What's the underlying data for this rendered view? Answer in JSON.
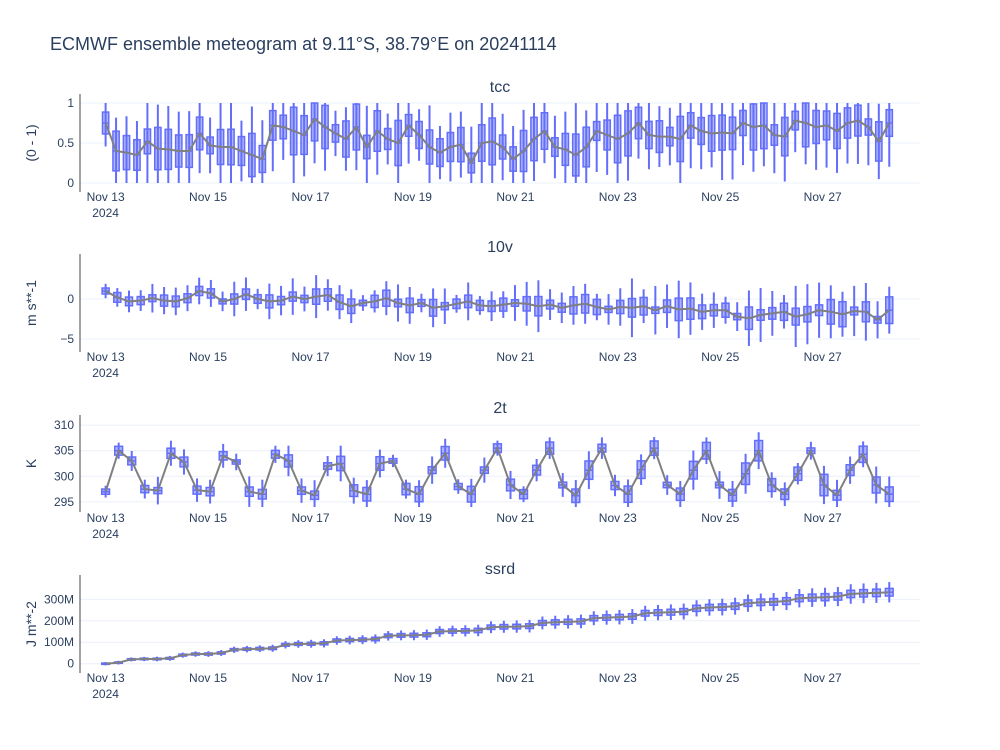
{
  "title": "ECMWF ensemble meteogram at 9.11°S, 38.79°E on 20241114",
  "colors": {
    "box_fill": "rgba(99,110,250,0.5)",
    "box_line": "#636efa",
    "whisker": "#636efa",
    "mean_line": "#808080",
    "grid": "#ebf0f8",
    "text": "#2a3f5f"
  },
  "x_axis": {
    "ticks": [
      {
        "t": 0,
        "label": "Nov 13",
        "sub": "2024"
      },
      {
        "t": 2,
        "label": "Nov 15",
        "sub": ""
      },
      {
        "t": 4,
        "label": "Nov 17",
        "sub": ""
      },
      {
        "t": 6,
        "label": "Nov 19",
        "sub": ""
      },
      {
        "t": 8,
        "label": "Nov 21",
        "sub": ""
      },
      {
        "t": 10,
        "label": "Nov 23",
        "sub": ""
      },
      {
        "t": 12,
        "label": "Nov 25",
        "sub": ""
      },
      {
        "t": 14,
        "label": "Nov 27",
        "sub": ""
      }
    ],
    "range_days": [
      -0.5,
      15.9
    ]
  },
  "chart_data": [
    {
      "type": "box",
      "title": "tcc",
      "ylabel": "(0 - 1)",
      "ylim": [
        -0.05,
        1.05
      ],
      "yticks": [
        {
          "v": 0,
          "label": "0"
        },
        {
          "v": 0.5,
          "label": "0.5"
        },
        {
          "v": 1,
          "label": "1"
        }
      ],
      "mean": [
        0.75,
        0.4,
        0.38,
        0.35,
        0.52,
        0.43,
        0.42,
        0.4,
        0.4,
        0.62,
        0.47,
        0.45,
        0.45,
        0.4,
        0.35,
        0.3,
        0.72,
        0.7,
        0.65,
        0.6,
        0.8,
        0.7,
        0.62,
        0.55,
        0.7,
        0.45,
        0.65,
        0.55,
        0.5,
        0.72,
        0.6,
        0.45,
        0.38,
        0.45,
        0.48,
        0.25,
        0.5,
        0.52,
        0.45,
        0.3,
        0.4,
        0.55,
        0.65,
        0.45,
        0.42,
        0.35,
        0.45,
        0.65,
        0.6,
        0.55,
        0.62,
        0.75,
        0.6,
        0.58,
        0.58,
        0.55,
        0.72,
        0.65,
        0.62,
        0.63,
        0.62,
        0.75,
        0.7,
        0.72,
        0.6,
        0.58,
        0.78,
        0.75,
        0.7,
        0.72,
        0.65,
        0.75,
        0.78,
        0.7,
        0.52,
        0.75
      ]
    },
    {
      "type": "box",
      "title": "10v",
      "ylabel": "m s**-1",
      "ylim": [
        -6,
        5
      ],
      "yticks": [
        {
          "v": -5,
          "label": "−5"
        },
        {
          "v": 0,
          "label": "0"
        }
      ],
      "mean": [
        1.0,
        0.2,
        -0.3,
        -0.2,
        0.1,
        -0.2,
        -0.3,
        0.1,
        1.0,
        0.7,
        -0.3,
        0.0,
        0.6,
        0.0,
        -0.3,
        -0.2,
        0.3,
        0.0,
        0.3,
        0.5,
        -0.4,
        -0.9,
        -0.5,
        -0.3,
        0.1,
        -0.5,
        -0.8,
        -0.5,
        -1.1,
        -0.9,
        -0.6,
        -0.3,
        -0.8,
        -0.9,
        -0.7,
        -0.5,
        -0.6,
        -0.9,
        -0.7,
        -1.1,
        -0.8,
        -0.6,
        -1.0,
        -1.3,
        -1.0,
        -1.1,
        -0.9,
        -1.4,
        -0.9,
        -1.3,
        -1.2,
        -1.6,
        -1.4,
        -1.4,
        -2.2,
        -2.4,
        -2.0,
        -1.8,
        -1.6,
        -2.2,
        -1.9,
        -1.4,
        -1.6,
        -1.9,
        -1.5,
        -1.6,
        -2.6,
        -1.4
      ]
    },
    {
      "type": "box",
      "title": "2t",
      "ylabel": "K",
      "ylim": [
        294,
        311
      ],
      "yticks": [
        {
          "v": 295,
          "label": "295"
        },
        {
          "v": 300,
          "label": "300"
        },
        {
          "v": 305,
          "label": "305"
        },
        {
          "v": 310,
          "label": "310"
        }
      ],
      "mean": [
        297.0,
        305.0,
        303.0,
        297.5,
        297.2,
        304.5,
        302.8,
        297.3,
        297.0,
        304.0,
        302.8,
        297.0,
        296.5,
        304.3,
        303.0,
        297.2,
        296.3,
        302.0,
        302.5,
        297.2,
        296.5,
        302.5,
        303.0,
        297.5,
        296.5,
        301.2,
        304.5,
        298.0,
        296.5,
        301.2,
        305.5,
        298.3,
        296.5,
        301.2,
        305.5,
        298.3,
        296.2,
        301.2,
        305.5,
        298.2,
        296.5,
        301.3,
        305.5,
        298.3,
        296.5,
        301.2,
        305.0,
        298.3,
        296.3,
        300.5,
        305.0,
        298.3,
        296.5,
        300.5,
        305.0,
        298.3,
        296.3,
        301.2,
        304.3,
        298.3,
        296.5
      ]
    },
    {
      "type": "box",
      "title": "ssrd",
      "ylabel": "J m**-2",
      "ylim": [
        -20000000,
        390000000
      ],
      "yticks": [
        {
          "v": 0,
          "label": "0"
        },
        {
          "v": 100000000,
          "label": "100M"
        },
        {
          "v": 200000000,
          "label": "200M"
        },
        {
          "v": 300000000,
          "label": "300M"
        }
      ],
      "mean": [
        0,
        5000000,
        20000000,
        22000000,
        22000000,
        25000000,
        40000000,
        45000000,
        45000000,
        50000000,
        65000000,
        68000000,
        70000000,
        72000000,
        88000000,
        92000000,
        93000000,
        95000000,
        108000000,
        110000000,
        112000000,
        115000000,
        130000000,
        132000000,
        133000000,
        135000000,
        150000000,
        152000000,
        153000000,
        155000000,
        170000000,
        172000000,
        173000000,
        175000000,
        190000000,
        193000000,
        195000000,
        197000000,
        212000000,
        215000000,
        217000000,
        220000000,
        235000000,
        238000000,
        240000000,
        243000000,
        258000000,
        262000000,
        264000000,
        268000000,
        282000000,
        286000000,
        288000000,
        292000000,
        305000000,
        308000000,
        310000000,
        313000000,
        325000000,
        328000000,
        330000000,
        333000000
      ]
    }
  ]
}
